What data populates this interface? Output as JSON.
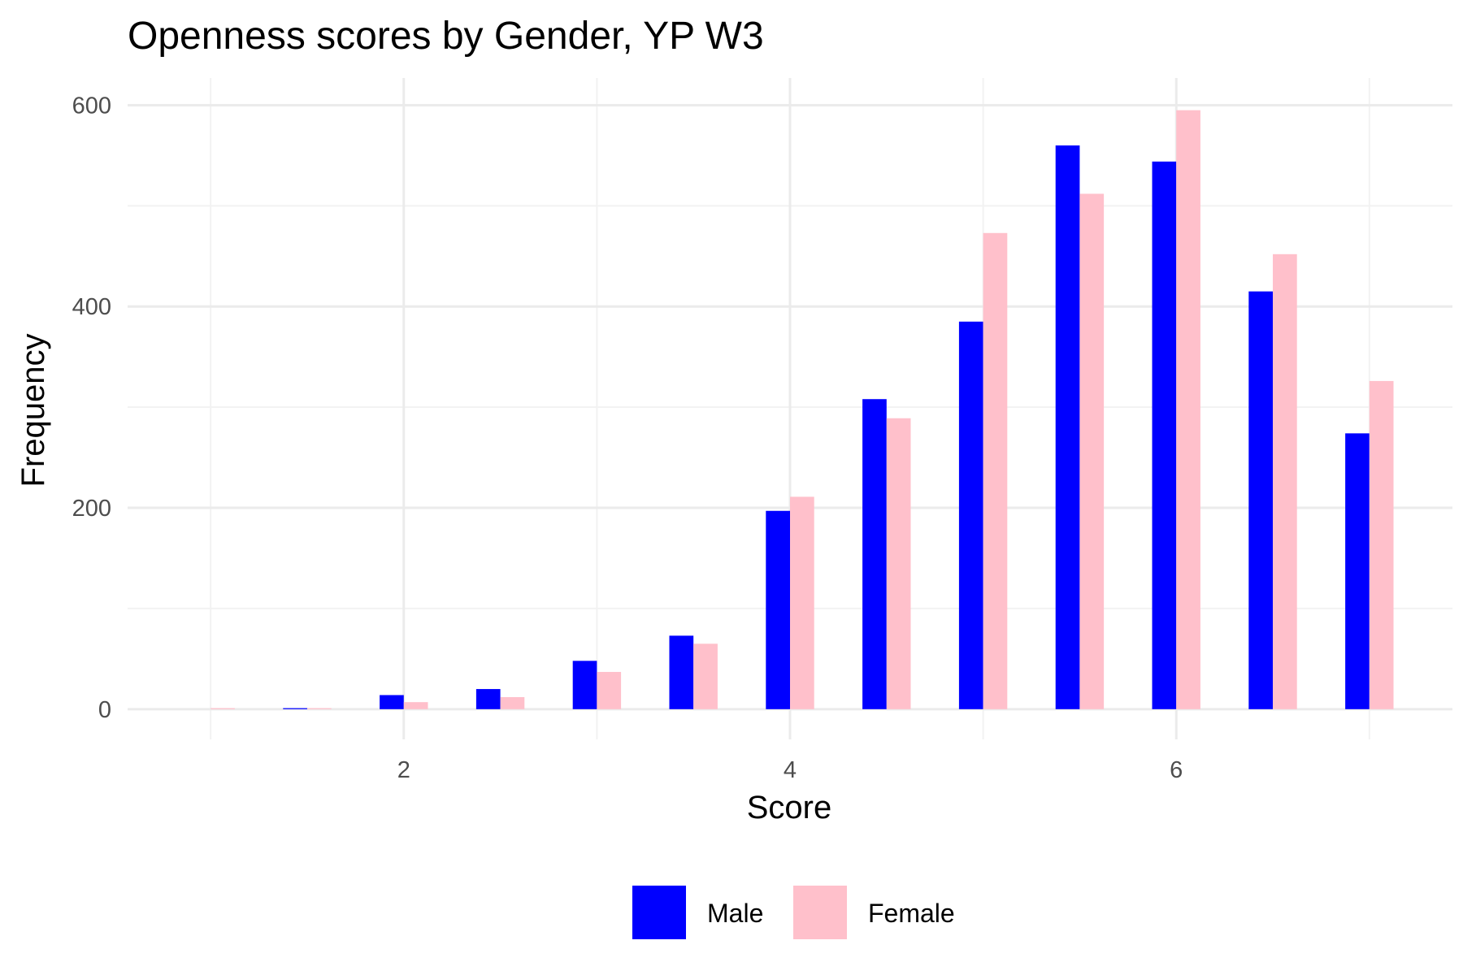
{
  "chart_data": {
    "type": "bar",
    "title": "Openness scores by Gender, YP W3",
    "xlabel": "Score",
    "ylabel": "Frequency",
    "x": [
      1.0,
      1.5,
      2.0,
      2.5,
      3.0,
      3.5,
      4.0,
      4.5,
      5.0,
      5.5,
      6.0,
      6.5,
      7.0
    ],
    "series": [
      {
        "name": "Male",
        "color": "#0000ff",
        "values": [
          0,
          1,
          14,
          20,
          48,
          73,
          197,
          308,
          385,
          560,
          544,
          415,
          274
        ]
      },
      {
        "name": "Female",
        "color": "#ffc0cb",
        "values": [
          1,
          1,
          7,
          12,
          37,
          65,
          211,
          289,
          473,
          512,
          595,
          452,
          326
        ]
      }
    ],
    "xlim": [
      0.57,
      7.43
    ],
    "ylim": [
      -30,
      627
    ],
    "x_ticks": [
      2,
      4,
      6
    ],
    "y_ticks": [
      0,
      200,
      400,
      600
    ],
    "grid": true,
    "legend_position": "bottom"
  }
}
